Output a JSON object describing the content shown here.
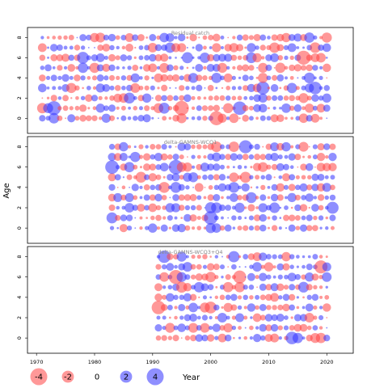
{
  "chart_data": {
    "type": "scatter",
    "ylabel": "Age",
    "xlabel": "Year",
    "xlim": [
      1969,
      2024
    ],
    "ylim": [
      -1.5,
      9
    ],
    "x_ticks": [
      1970,
      1980,
      1990,
      2000,
      2010,
      2020
    ],
    "y_ticks": [
      0,
      2,
      4,
      6,
      8
    ],
    "ages": [
      0,
      1,
      2,
      3,
      4,
      5,
      6,
      7,
      8
    ],
    "colors": {
      "positive": "#3333ff",
      "negative": "#ff4444"
    },
    "size_legend": {
      "values": [
        -4,
        -2,
        0,
        2,
        4
      ]
    },
    "panels": [
      {
        "title": "Residual catch",
        "years": [
          1971,
          2020
        ],
        "highlights": [
          {
            "x": 1973,
            "y": 1,
            "v": 3.0
          },
          {
            "x": 1995,
            "y": 1,
            "v": -3.2
          },
          {
            "x": 2001,
            "y": 0,
            "v": -3.0
          },
          {
            "x": 2005,
            "y": 1,
            "v": 2.8
          },
          {
            "x": 2009,
            "y": 3,
            "v": 2.6
          },
          {
            "x": 2016,
            "y": 6,
            "v": -3.0
          },
          {
            "x": 2018,
            "y": 3,
            "v": 2.4
          }
        ]
      },
      {
        "title": "delta-GAMNS-WCQ1",
        "years": [
          1983,
          2021
        ],
        "highlights": [
          {
            "x": 1983,
            "y": 6,
            "v": 2.8
          },
          {
            "x": 1994,
            "y": 6,
            "v": 3.2
          },
          {
            "x": 2000,
            "y": 1,
            "v": 2.8
          },
          {
            "x": 2006,
            "y": 8,
            "v": 2.6
          },
          {
            "x": 2021,
            "y": 2,
            "v": 2.2
          }
        ]
      },
      {
        "title": "delta-GAMNS-WCQ3+Q4",
        "years": [
          1991,
          2020
        ],
        "highlights": [
          {
            "x": 1991,
            "y": 3,
            "v": -2.8
          },
          {
            "x": 1992,
            "y": 8,
            "v": 2.4
          },
          {
            "x": 1994,
            "y": 6,
            "v": -3.0
          },
          {
            "x": 2005,
            "y": 6,
            "v": -2.6
          },
          {
            "x": 2014,
            "y": 0,
            "v": 2.4
          },
          {
            "x": 2019,
            "y": 7,
            "v": -2.6
          }
        ]
      }
    ]
  }
}
